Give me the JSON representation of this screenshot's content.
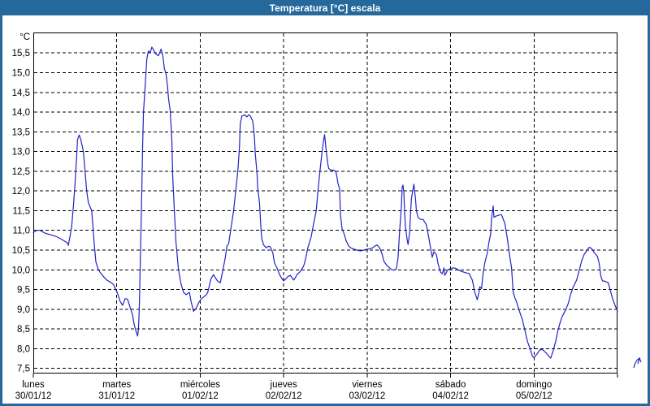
{
  "window": {
    "title": "Temperatura [°C] escala"
  },
  "colors": {
    "frame": "#25689B",
    "title_text": "#FFFFFF",
    "plot_bg": "#FFFFFF",
    "grid": "#000000",
    "axis_text": "#000000",
    "line": "#2222C8"
  },
  "chart_data": {
    "type": "line",
    "title": "Temperatura [°C] escala",
    "grid": "dashed",
    "legend": "none",
    "y_axis": {
      "unit": "°C",
      "min": 7.37,
      "max": 16.02,
      "tick_step": 0.5,
      "tick_values": [
        15.5,
        15.0,
        14.5,
        14.0,
        13.5,
        13.0,
        12.5,
        12.0,
        11.5,
        11.0,
        10.5,
        10.0,
        9.5,
        9.0,
        8.5,
        8.0,
        7.5
      ],
      "tick_labels": [
        "15,5",
        "15,0",
        "14,5",
        "14,0",
        "13,5",
        "13,0",
        "12,5",
        "12,0",
        "11,5",
        "11,0",
        "10,5",
        "10,0",
        "9,5",
        "9,0",
        "8,5",
        "8,0",
        "7,5"
      ]
    },
    "x_axis": {
      "unit": "days",
      "days": [
        {
          "name": "lunes",
          "date": "30/01/12"
        },
        {
          "name": "martes",
          "date": "31/01/12"
        },
        {
          "name": "miércoles",
          "date": "01/02/12"
        },
        {
          "name": "jueves",
          "date": "02/02/12"
        },
        {
          "name": "viernes",
          "date": "03/02/12"
        },
        {
          "name": "sábado",
          "date": "04/02/12"
        },
        {
          "name": "domingo",
          "date": "05/02/12"
        }
      ]
    },
    "series": [
      {
        "name": "Temperatura",
        "unit": "°C",
        "color": "#2222C8",
        "x_unit": "days_from_start",
        "points": [
          [
            0.0,
            10.95
          ],
          [
            0.04,
            11.0
          ],
          [
            0.08,
            11.0
          ],
          [
            0.14,
            10.93
          ],
          [
            0.19,
            10.9
          ],
          [
            0.24,
            10.87
          ],
          [
            0.29,
            10.83
          ],
          [
            0.35,
            10.76
          ],
          [
            0.41,
            10.68
          ],
          [
            0.42,
            10.62
          ],
          [
            0.44,
            10.85
          ],
          [
            0.46,
            11.1
          ],
          [
            0.48,
            11.6
          ],
          [
            0.5,
            12.2
          ],
          [
            0.52,
            12.9
          ],
          [
            0.53,
            13.3
          ],
          [
            0.55,
            13.42
          ],
          [
            0.57,
            13.3
          ],
          [
            0.59,
            13.1
          ],
          [
            0.6,
            13.0
          ],
          [
            0.62,
            12.5
          ],
          [
            0.64,
            12.0
          ],
          [
            0.66,
            11.7
          ],
          [
            0.7,
            11.5
          ],
          [
            0.73,
            10.66
          ],
          [
            0.75,
            10.2
          ],
          [
            0.78,
            10.0
          ],
          [
            0.81,
            9.91
          ],
          [
            0.84,
            9.83
          ],
          [
            0.88,
            9.74
          ],
          [
            0.93,
            9.68
          ],
          [
            0.96,
            9.63
          ],
          [
            0.99,
            9.5
          ],
          [
            1.01,
            9.4
          ],
          [
            1.04,
            9.2
          ],
          [
            1.07,
            9.1
          ],
          [
            1.1,
            9.27
          ],
          [
            1.13,
            9.25
          ],
          [
            1.16,
            9.05
          ],
          [
            1.19,
            8.85
          ],
          [
            1.21,
            8.6
          ],
          [
            1.23,
            8.45
          ],
          [
            1.25,
            8.32
          ],
          [
            1.26,
            8.5
          ],
          [
            1.27,
            9.0
          ],
          [
            1.29,
            11.0
          ],
          [
            1.3,
            12.0
          ],
          [
            1.31,
            13.2
          ],
          [
            1.32,
            14.0
          ],
          [
            1.35,
            15.0
          ],
          [
            1.36,
            15.35
          ],
          [
            1.38,
            15.55
          ],
          [
            1.4,
            15.5
          ],
          [
            1.42,
            15.65
          ],
          [
            1.44,
            15.58
          ],
          [
            1.47,
            15.47
          ],
          [
            1.5,
            15.43
          ],
          [
            1.53,
            15.6
          ],
          [
            1.55,
            15.45
          ],
          [
            1.56,
            15.3
          ],
          [
            1.57,
            15.1
          ],
          [
            1.59,
            14.99
          ],
          [
            1.61,
            14.6
          ],
          [
            1.62,
            14.35
          ],
          [
            1.64,
            14.03
          ],
          [
            1.66,
            13.3
          ],
          [
            1.67,
            12.4
          ],
          [
            1.69,
            11.5
          ],
          [
            1.71,
            10.7
          ],
          [
            1.74,
            10.0
          ],
          [
            1.77,
            9.64
          ],
          [
            1.8,
            9.43
          ],
          [
            1.83,
            9.37
          ],
          [
            1.87,
            9.43
          ],
          [
            1.89,
            9.2
          ],
          [
            1.92,
            8.95
          ],
          [
            1.95,
            9.02
          ],
          [
            1.98,
            9.16
          ],
          [
            2.01,
            9.26
          ],
          [
            2.04,
            9.31
          ],
          [
            2.07,
            9.36
          ],
          [
            2.09,
            9.43
          ],
          [
            2.13,
            9.78
          ],
          [
            2.16,
            9.88
          ],
          [
            2.18,
            9.8
          ],
          [
            2.21,
            9.71
          ],
          [
            2.24,
            9.67
          ],
          [
            2.27,
            9.98
          ],
          [
            2.3,
            10.3
          ],
          [
            2.32,
            10.6
          ],
          [
            2.34,
            10.66
          ],
          [
            2.37,
            11.07
          ],
          [
            2.4,
            11.5
          ],
          [
            2.42,
            11.9
          ],
          [
            2.45,
            12.5
          ],
          [
            2.47,
            13.1
          ],
          [
            2.48,
            13.7
          ],
          [
            2.5,
            13.9
          ],
          [
            2.53,
            13.93
          ],
          [
            2.56,
            13.88
          ],
          [
            2.58,
            13.93
          ],
          [
            2.6,
            13.9
          ],
          [
            2.63,
            13.77
          ],
          [
            2.65,
            13.35
          ],
          [
            2.66,
            12.94
          ],
          [
            2.68,
            12.46
          ],
          [
            2.69,
            12.05
          ],
          [
            2.71,
            11.7
          ],
          [
            2.73,
            10.97
          ],
          [
            2.74,
            10.77
          ],
          [
            2.76,
            10.63
          ],
          [
            2.79,
            10.56
          ],
          [
            2.82,
            10.6
          ],
          [
            2.84,
            10.58
          ],
          [
            2.87,
            10.43
          ],
          [
            2.89,
            10.18
          ],
          [
            2.92,
            10.05
          ],
          [
            2.95,
            9.88
          ],
          [
            2.98,
            9.77
          ],
          [
            3.0,
            9.72
          ],
          [
            3.03,
            9.78
          ],
          [
            3.05,
            9.83
          ],
          [
            3.08,
            9.86
          ],
          [
            3.1,
            9.8
          ],
          [
            3.12,
            9.74
          ],
          [
            3.14,
            9.8
          ],
          [
            3.16,
            9.88
          ],
          [
            3.19,
            9.94
          ],
          [
            3.21,
            9.99
          ],
          [
            3.24,
            10.1
          ],
          [
            3.26,
            10.25
          ],
          [
            3.29,
            10.56
          ],
          [
            3.33,
            10.84
          ],
          [
            3.36,
            11.18
          ],
          [
            3.39,
            11.5
          ],
          [
            3.41,
            12.0
          ],
          [
            3.44,
            12.6
          ],
          [
            3.46,
            13.0
          ],
          [
            3.48,
            13.3
          ],
          [
            3.49,
            13.43
          ],
          [
            3.51,
            13.02
          ],
          [
            3.53,
            12.67
          ],
          [
            3.54,
            12.57
          ],
          [
            3.57,
            12.52
          ],
          [
            3.6,
            12.53
          ],
          [
            3.62,
            12.5
          ],
          [
            3.63,
            12.45
          ],
          [
            3.65,
            12.2
          ],
          [
            3.67,
            12.05
          ],
          [
            3.68,
            11.4
          ],
          [
            3.7,
            11.04
          ],
          [
            3.72,
            10.94
          ],
          [
            3.75,
            10.73
          ],
          [
            3.78,
            10.6
          ],
          [
            3.81,
            10.55
          ],
          [
            3.85,
            10.52
          ],
          [
            3.88,
            10.5
          ],
          [
            3.92,
            10.48
          ],
          [
            3.96,
            10.5
          ],
          [
            3.99,
            10.52
          ],
          [
            4.02,
            10.53
          ],
          [
            4.06,
            10.55
          ],
          [
            4.09,
            10.6
          ],
          [
            4.12,
            10.63
          ],
          [
            4.15,
            10.55
          ],
          [
            4.18,
            10.4
          ],
          [
            4.2,
            10.22
          ],
          [
            4.24,
            10.1
          ],
          [
            4.27,
            10.05
          ],
          [
            4.29,
            10.01
          ],
          [
            4.32,
            9.99
          ],
          [
            4.35,
            10.02
          ],
          [
            4.37,
            10.3
          ],
          [
            4.39,
            11.0
          ],
          [
            4.41,
            11.6
          ],
          [
            4.42,
            12.1
          ],
          [
            4.43,
            12.15
          ],
          [
            4.44,
            11.95
          ],
          [
            4.45,
            11.4
          ],
          [
            4.46,
            11.07
          ],
          [
            4.48,
            10.75
          ],
          [
            4.49,
            10.64
          ],
          [
            4.51,
            10.94
          ],
          [
            4.52,
            11.43
          ],
          [
            4.53,
            11.8
          ],
          [
            4.55,
            12.05
          ],
          [
            4.56,
            12.17
          ],
          [
            4.58,
            11.8
          ],
          [
            4.59,
            11.5
          ],
          [
            4.61,
            11.33
          ],
          [
            4.64,
            11.28
          ],
          [
            4.67,
            11.28
          ],
          [
            4.71,
            11.14
          ],
          [
            4.74,
            10.8
          ],
          [
            4.76,
            10.56
          ],
          [
            4.78,
            10.32
          ],
          [
            4.8,
            10.46
          ],
          [
            4.83,
            10.39
          ],
          [
            4.85,
            10.15
          ],
          [
            4.88,
            9.94
          ],
          [
            4.9,
            9.9
          ],
          [
            4.92,
            10.05
          ],
          [
            4.93,
            9.86
          ],
          [
            4.97,
            10.01
          ],
          [
            5.0,
            10.03
          ],
          [
            5.03,
            10.05
          ],
          [
            5.06,
            10.04
          ],
          [
            5.1,
            9.99
          ],
          [
            5.13,
            9.96
          ],
          [
            5.16,
            9.94
          ],
          [
            5.19,
            9.92
          ],
          [
            5.22,
            9.91
          ],
          [
            5.26,
            9.74
          ],
          [
            5.29,
            9.43
          ],
          [
            5.32,
            9.24
          ],
          [
            5.34,
            9.43
          ],
          [
            5.35,
            9.57
          ],
          [
            5.37,
            9.52
          ],
          [
            5.39,
            9.91
          ],
          [
            5.41,
            10.18
          ],
          [
            5.44,
            10.43
          ],
          [
            5.46,
            10.7
          ],
          [
            5.48,
            10.91
          ],
          [
            5.49,
            11.28
          ],
          [
            5.51,
            11.62
          ],
          [
            5.52,
            11.33
          ],
          [
            5.54,
            11.36
          ],
          [
            5.57,
            11.38
          ],
          [
            5.6,
            11.4
          ],
          [
            5.61,
            11.4
          ],
          [
            5.65,
            11.18
          ],
          [
            5.68,
            10.8
          ],
          [
            5.7,
            10.46
          ],
          [
            5.73,
            10.05
          ],
          [
            5.75,
            9.43
          ],
          [
            5.77,
            9.29
          ],
          [
            5.79,
            9.19
          ],
          [
            5.82,
            8.98
          ],
          [
            5.86,
            8.74
          ],
          [
            5.89,
            8.47
          ],
          [
            5.92,
            8.19
          ],
          [
            5.96,
            7.95
          ],
          [
            5.98,
            7.81
          ],
          [
            6.0,
            7.77
          ],
          [
            6.04,
            7.88
          ],
          [
            6.07,
            7.97
          ],
          [
            6.1,
            7.98
          ],
          [
            6.15,
            7.88
          ],
          [
            6.18,
            7.8
          ],
          [
            6.2,
            7.76
          ],
          [
            6.23,
            7.95
          ],
          [
            6.26,
            8.19
          ],
          [
            6.28,
            8.4
          ],
          [
            6.31,
            8.64
          ],
          [
            6.33,
            8.78
          ],
          [
            6.36,
            8.91
          ],
          [
            6.38,
            8.98
          ],
          [
            6.41,
            9.15
          ],
          [
            6.44,
            9.39
          ],
          [
            6.47,
            9.57
          ],
          [
            6.51,
            9.74
          ],
          [
            6.54,
            9.98
          ],
          [
            6.57,
            10.22
          ],
          [
            6.6,
            10.39
          ],
          [
            6.64,
            10.51
          ],
          [
            6.66,
            10.57
          ],
          [
            6.69,
            10.54
          ],
          [
            6.72,
            10.44
          ],
          [
            6.76,
            10.34
          ],
          [
            6.78,
            10.17
          ],
          [
            6.8,
            9.84
          ],
          [
            6.82,
            9.72
          ],
          [
            6.85,
            9.71
          ],
          [
            6.89,
            9.67
          ],
          [
            6.92,
            9.43
          ],
          [
            6.94,
            9.28
          ],
          [
            6.98,
            9.05
          ],
          [
            7.0,
            8.96
          ]
        ]
      }
    ]
  }
}
